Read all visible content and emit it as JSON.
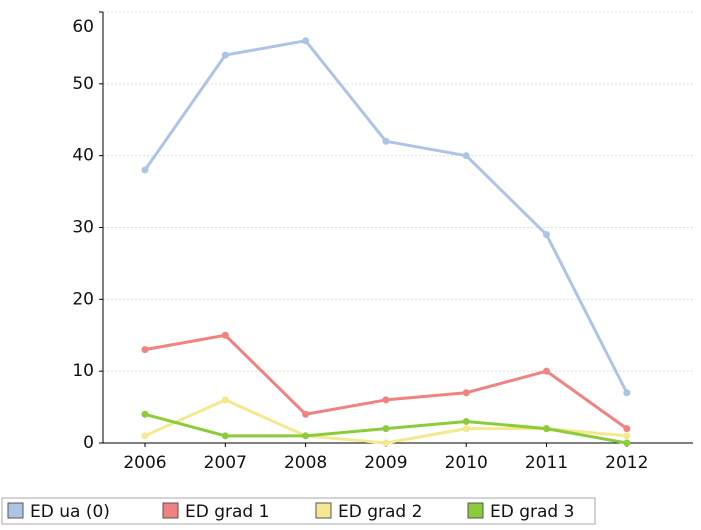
{
  "chart_data": {
    "type": "line",
    "categories": [
      "2006",
      "2007",
      "2008",
      "2009",
      "2010",
      "2011",
      "2012"
    ],
    "series": [
      {
        "name": "ED ua (0)",
        "color": "#aec4e6",
        "values": [
          38,
          54,
          56,
          42,
          40,
          29,
          7
        ]
      },
      {
        "name": "ED grad 1",
        "color": "#f08282",
        "values": [
          13,
          15,
          4,
          6,
          7,
          10,
          2
        ]
      },
      {
        "name": "ED grad 2",
        "color": "#f5e88e",
        "values": [
          1,
          6,
          1,
          0,
          2,
          2,
          1
        ]
      },
      {
        "name": "ED grad 3",
        "color": "#8ccb3a",
        "values": [
          4,
          1,
          1,
          2,
          3,
          2,
          0
        ]
      }
    ],
    "ylim": [
      0,
      60
    ],
    "yticks": [
      0,
      10,
      20,
      30,
      40,
      50,
      60
    ],
    "grid": true
  }
}
